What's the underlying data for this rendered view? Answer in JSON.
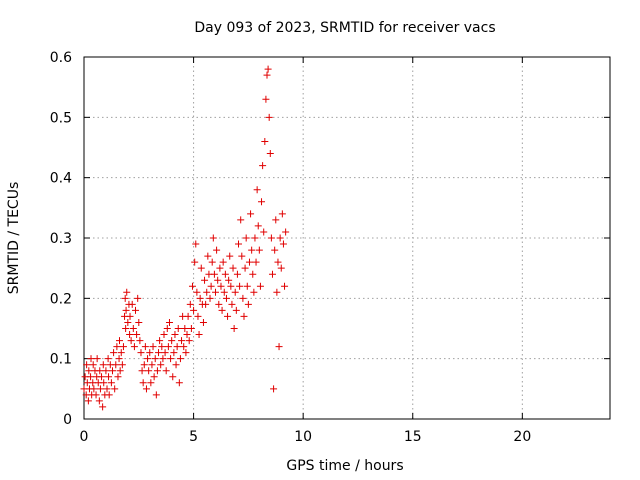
{
  "chart_data": {
    "type": "scatter",
    "title": "Day 093 of 2023, SRMTID for receiver vacs",
    "xlabel": "GPS time / hours",
    "ylabel": "SRMTID / TECUs",
    "xlim": [
      0,
      24
    ],
    "ylim": [
      0,
      0.6
    ],
    "grid": true,
    "marker": "+",
    "series_color": "#e00000",
    "x_ticks": [
      0,
      5,
      10,
      15,
      20
    ],
    "x_tick_labels": [
      "0",
      "5",
      "10",
      "15",
      "20"
    ],
    "y_ticks": [
      0,
      0.1,
      0.2,
      0.3,
      0.4,
      0.5,
      0.6
    ],
    "y_tick_labels": [
      "0",
      "0.1",
      "0.2",
      "0.3",
      "0.4",
      "0.5",
      "0.6"
    ],
    "series": [
      {
        "name": "SRMTID",
        "points": [
          [
            0.0,
            0.05
          ],
          [
            0.05,
            0.07
          ],
          [
            0.1,
            0.04
          ],
          [
            0.12,
            0.09
          ],
          [
            0.15,
            0.06
          ],
          [
            0.2,
            0.03
          ],
          [
            0.22,
            0.08
          ],
          [
            0.25,
            0.05
          ],
          [
            0.3,
            0.07
          ],
          [
            0.32,
            0.1
          ],
          [
            0.35,
            0.04
          ],
          [
            0.4,
            0.06
          ],
          [
            0.42,
            0.09
          ],
          [
            0.45,
            0.05
          ],
          [
            0.5,
            0.08
          ],
          [
            0.55,
            0.04
          ],
          [
            0.58,
            0.07
          ],
          [
            0.6,
            0.1
          ],
          [
            0.65,
            0.06
          ],
          [
            0.7,
            0.03
          ],
          [
            0.72,
            0.08
          ],
          [
            0.75,
            0.05
          ],
          [
            0.8,
            0.07
          ],
          [
            0.85,
            0.02
          ],
          [
            0.88,
            0.09
          ],
          [
            0.9,
            0.06
          ],
          [
            0.95,
            0.04
          ],
          [
            1.0,
            0.08
          ],
          [
            1.05,
            0.05
          ],
          [
            1.1,
            0.1
          ],
          [
            1.12,
            0.07
          ],
          [
            1.15,
            0.04
          ],
          [
            1.2,
            0.09
          ],
          [
            1.25,
            0.06
          ],
          [
            1.3,
            0.08
          ],
          [
            1.35,
            0.11
          ],
          [
            1.4,
            0.05
          ],
          [
            1.45,
            0.09
          ],
          [
            1.5,
            0.12
          ],
          [
            1.55,
            0.07
          ],
          [
            1.6,
            0.1
          ],
          [
            1.62,
            0.13
          ],
          [
            1.65,
            0.08
          ],
          [
            1.7,
            0.11
          ],
          [
            1.75,
            0.09
          ],
          [
            1.8,
            0.12
          ],
          [
            1.85,
            0.17
          ],
          [
            1.88,
            0.2
          ],
          [
            1.9,
            0.15
          ],
          [
            1.92,
            0.18
          ],
          [
            1.95,
            0.21
          ],
          [
            2.0,
            0.16
          ],
          [
            2.05,
            0.19
          ],
          [
            2.08,
            0.14
          ],
          [
            2.1,
            0.17
          ],
          [
            2.15,
            0.13
          ],
          [
            2.2,
            0.19
          ],
          [
            2.25,
            0.15
          ],
          [
            2.3,
            0.12
          ],
          [
            2.35,
            0.18
          ],
          [
            2.4,
            0.14
          ],
          [
            2.45,
            0.2
          ],
          [
            2.5,
            0.16
          ],
          [
            2.55,
            0.13
          ],
          [
            2.6,
            0.11
          ],
          [
            2.65,
            0.08
          ],
          [
            2.7,
            0.06
          ],
          [
            2.75,
            0.09
          ],
          [
            2.8,
            0.12
          ],
          [
            2.85,
            0.05
          ],
          [
            2.9,
            0.1
          ],
          [
            2.95,
            0.08
          ],
          [
            3.0,
            0.11
          ],
          [
            3.05,
            0.06
          ],
          [
            3.1,
            0.09
          ],
          [
            3.15,
            0.12
          ],
          [
            3.2,
            0.07
          ],
          [
            3.25,
            0.1
          ],
          [
            3.3,
            0.04
          ],
          [
            3.35,
            0.08
          ],
          [
            3.4,
            0.11
          ],
          [
            3.45,
            0.13
          ],
          [
            3.5,
            0.09
          ],
          [
            3.55,
            0.12
          ],
          [
            3.6,
            0.1
          ],
          [
            3.65,
            0.14
          ],
          [
            3.7,
            0.11
          ],
          [
            3.75,
            0.08
          ],
          [
            3.8,
            0.15
          ],
          [
            3.85,
            0.12
          ],
          [
            3.9,
            0.16
          ],
          [
            3.95,
            0.1
          ],
          [
            4.0,
            0.13
          ],
          [
            4.05,
            0.07
          ],
          [
            4.1,
            0.11
          ],
          [
            4.15,
            0.14
          ],
          [
            4.2,
            0.09
          ],
          [
            4.25,
            0.12
          ],
          [
            4.3,
            0.15
          ],
          [
            4.35,
            0.06
          ],
          [
            4.4,
            0.1
          ],
          [
            4.45,
            0.13
          ],
          [
            4.5,
            0.17
          ],
          [
            4.55,
            0.12
          ],
          [
            4.6,
            0.15
          ],
          [
            4.65,
            0.11
          ],
          [
            4.7,
            0.14
          ],
          [
            4.75,
            0.17
          ],
          [
            4.8,
            0.13
          ],
          [
            4.85,
            0.19
          ],
          [
            4.9,
            0.15
          ],
          [
            4.95,
            0.22
          ],
          [
            5.0,
            0.18
          ],
          [
            5.05,
            0.26
          ],
          [
            5.1,
            0.29
          ],
          [
            5.15,
            0.21
          ],
          [
            5.2,
            0.17
          ],
          [
            5.25,
            0.14
          ],
          [
            5.3,
            0.2
          ],
          [
            5.35,
            0.25
          ],
          [
            5.4,
            0.19
          ],
          [
            5.45,
            0.16
          ],
          [
            5.5,
            0.23
          ],
          [
            5.55,
            0.19
          ],
          [
            5.6,
            0.21
          ],
          [
            5.65,
            0.27
          ],
          [
            5.7,
            0.24
          ],
          [
            5.75,
            0.2
          ],
          [
            5.8,
            0.22
          ],
          [
            5.85,
            0.26
          ],
          [
            5.9,
            0.3
          ],
          [
            5.95,
            0.24
          ],
          [
            6.0,
            0.21
          ],
          [
            6.05,
            0.28
          ],
          [
            6.1,
            0.23
          ],
          [
            6.15,
            0.19
          ],
          [
            6.2,
            0.25
          ],
          [
            6.25,
            0.22
          ],
          [
            6.3,
            0.18
          ],
          [
            6.35,
            0.26
          ],
          [
            6.4,
            0.21
          ],
          [
            6.45,
            0.24
          ],
          [
            6.5,
            0.2
          ],
          [
            6.55,
            0.17
          ],
          [
            6.6,
            0.23
          ],
          [
            6.65,
            0.27
          ],
          [
            6.7,
            0.22
          ],
          [
            6.75,
            0.19
          ],
          [
            6.8,
            0.25
          ],
          [
            6.85,
            0.15
          ],
          [
            6.9,
            0.21
          ],
          [
            6.95,
            0.18
          ],
          [
            7.0,
            0.24
          ],
          [
            7.05,
            0.29
          ],
          [
            7.1,
            0.22
          ],
          [
            7.15,
            0.33
          ],
          [
            7.2,
            0.27
          ],
          [
            7.25,
            0.2
          ],
          [
            7.3,
            0.17
          ],
          [
            7.35,
            0.25
          ],
          [
            7.4,
            0.3
          ],
          [
            7.45,
            0.22
          ],
          [
            7.5,
            0.19
          ],
          [
            7.55,
            0.26
          ],
          [
            7.6,
            0.34
          ],
          [
            7.65,
            0.28
          ],
          [
            7.7,
            0.24
          ],
          [
            7.75,
            0.21
          ],
          [
            7.8,
            0.3
          ],
          [
            7.85,
            0.26
          ],
          [
            7.9,
            0.38
          ],
          [
            7.95,
            0.32
          ],
          [
            8.0,
            0.28
          ],
          [
            8.05,
            0.22
          ],
          [
            8.1,
            0.36
          ],
          [
            8.15,
            0.42
          ],
          [
            8.2,
            0.31
          ],
          [
            8.25,
            0.46
          ],
          [
            8.3,
            0.53
          ],
          [
            8.35,
            0.57
          ],
          [
            8.4,
            0.58
          ],
          [
            8.45,
            0.5
          ],
          [
            8.5,
            0.44
          ],
          [
            8.55,
            0.3
          ],
          [
            8.6,
            0.24
          ],
          [
            8.65,
            0.05
          ],
          [
            8.7,
            0.28
          ],
          [
            8.75,
            0.33
          ],
          [
            8.8,
            0.21
          ],
          [
            8.85,
            0.26
          ],
          [
            8.9,
            0.12
          ],
          [
            8.95,
            0.3
          ],
          [
            9.0,
            0.25
          ],
          [
            9.05,
            0.34
          ],
          [
            9.1,
            0.29
          ],
          [
            9.15,
            0.22
          ],
          [
            9.2,
            0.31
          ]
        ]
      }
    ]
  }
}
